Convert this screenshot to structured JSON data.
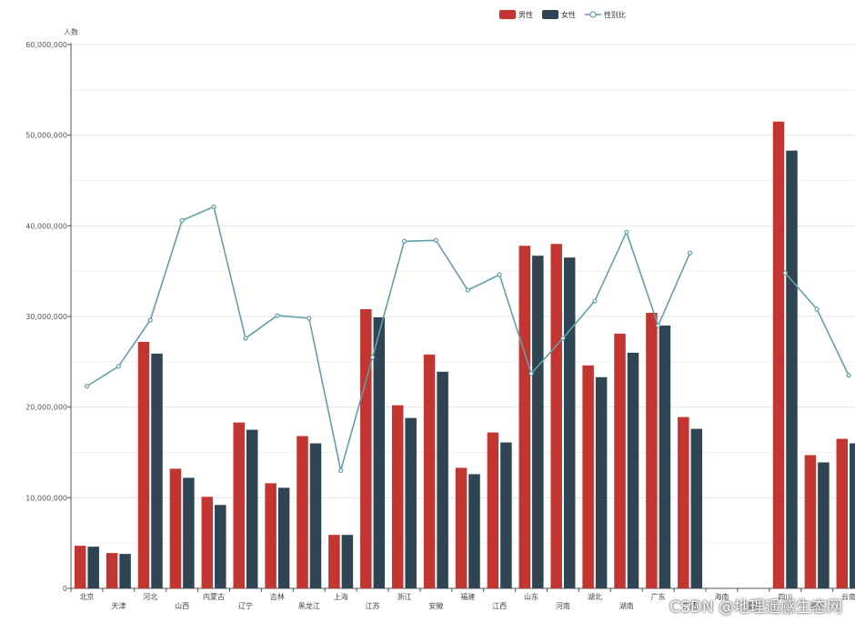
{
  "chart_data": {
    "type": "bar",
    "ylabel": "人数",
    "ylim": [
      0,
      60000000
    ],
    "yticks": [
      "0",
      "10,000,000",
      "20,000,000",
      "30,000,000",
      "40,000,000",
      "50,000,000",
      "60,000,000"
    ],
    "ytick_values": [
      0,
      10000000,
      20000000,
      30000000,
      40000000,
      50000000,
      60000000
    ],
    "grid": true,
    "legend_position": "top",
    "categories": [
      "北京",
      "天津",
      "河北",
      "山西",
      "内蒙古",
      "辽宁",
      "吉林",
      "黑龙江",
      "上海",
      "江苏",
      "浙江",
      "安徽",
      "福建",
      "江西",
      "山东",
      "河南",
      "湖北",
      "湖南",
      "广东",
      "广西",
      "海南",
      "重庆",
      "四川",
      "贵州",
      "云南"
    ],
    "series": [
      {
        "name": "男性",
        "type": "bar",
        "color": "#c23531",
        "values": [
          4700000,
          3900000,
          27200000,
          13200000,
          10100000,
          18300000,
          11600000,
          16800000,
          5900000,
          30800000,
          20200000,
          25800000,
          13300000,
          17200000,
          37800000,
          38000000,
          24600000,
          28100000,
          30400000,
          18900000,
          null,
          null,
          51500000,
          14700000,
          16500000
        ]
      },
      {
        "name": "女性",
        "type": "bar",
        "color": "#2f4554",
        "values": [
          4600000,
          3800000,
          25900000,
          12200000,
          9200000,
          17500000,
          11100000,
          16000000,
          5900000,
          29900000,
          18800000,
          23900000,
          12600000,
          16100000,
          36700000,
          36500000,
          23300000,
          26000000,
          29000000,
          17600000,
          null,
          null,
          48300000,
          13900000,
          16000000
        ]
      },
      {
        "name": "性别比",
        "type": "line",
        "color": "#61a0a8",
        "values": [
          22300000,
          24500000,
          29600000,
          40600000,
          42100000,
          27600000,
          30100000,
          29800000,
          13000000,
          25500000,
          38300000,
          38400000,
          32900000,
          34600000,
          23700000,
          27600000,
          31700000,
          39300000,
          29000000,
          37000000,
          null,
          null,
          34800000,
          30800000,
          23500000
        ]
      }
    ]
  },
  "watermark": "CSDN @地理遥感生态网"
}
